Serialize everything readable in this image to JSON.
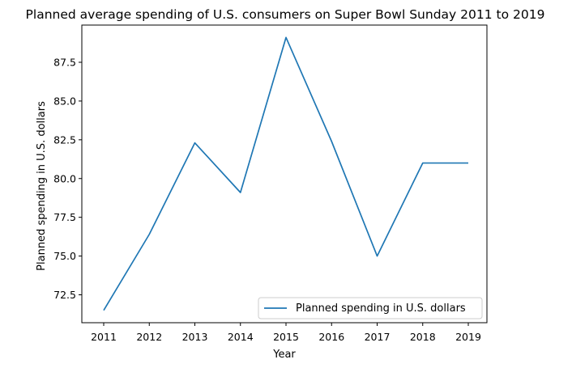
{
  "chart_data": {
    "type": "line",
    "title": "Planned average spending of U.S. consumers on Super Bowl Sunday 2011 to 2019",
    "xlabel": "Year",
    "ylabel": "Planned spending in U.S. dollars",
    "x": [
      "2011",
      "2012",
      "2013",
      "2014",
      "2015",
      "2016",
      "2017",
      "2018",
      "2019"
    ],
    "series": [
      {
        "name": "Planned spending in U.S. dollars",
        "color": "#1f77b4",
        "values": [
          71.5,
          76.4,
          82.3,
          79.1,
          89.1,
          82.4,
          75.0,
          81.0,
          81.0
        ]
      }
    ],
    "yticks": [
      "72.5",
      "75.0",
      "77.5",
      "80.0",
      "82.5",
      "85.0",
      "87.5"
    ],
    "ylim": [
      70.7,
      89.9
    ],
    "grid": false,
    "legend_position": "lower-right"
  }
}
